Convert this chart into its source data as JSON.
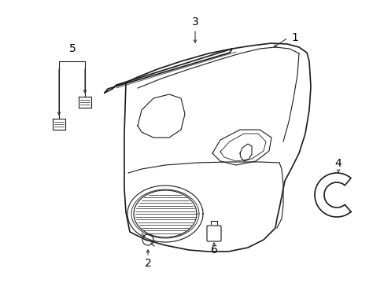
{
  "background_color": "#ffffff",
  "line_color": "#1a1a1a",
  "label_color": "#000000",
  "fig_w": 4.89,
  "fig_h": 3.6,
  "dpi": 100
}
